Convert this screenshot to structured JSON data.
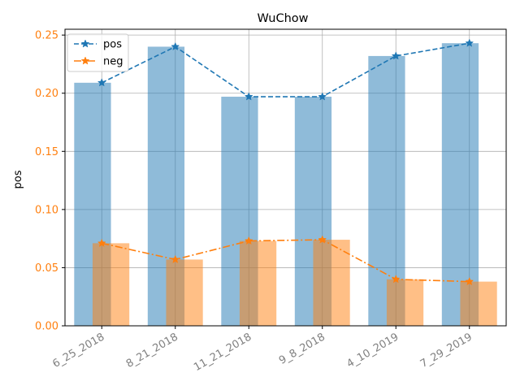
{
  "chart_data": {
    "type": "bar",
    "title": "WuChow",
    "ylabel": "pos",
    "xlabel": "",
    "categories": [
      "6_25_2018",
      "8_21_2018",
      "11_21_2018",
      "9_8_2018",
      "4_10_2019",
      "7_29_2019"
    ],
    "series": [
      {
        "name": "pos",
        "values": [
          0.209,
          0.24,
          0.197,
          0.197,
          0.232,
          0.243
        ],
        "color": "#1f77b4",
        "bar_color": "#8ebad9",
        "line_style": "dashed",
        "marker": "star"
      },
      {
        "name": "neg",
        "values": [
          0.071,
          0.057,
          0.073,
          0.074,
          0.04,
          0.038
        ],
        "color": "#ff7f0e",
        "bar_color": "#ffbf86",
        "line_style": "dashdot",
        "marker": "star"
      }
    ],
    "ylim": [
      0,
      0.255
    ],
    "yticks": [
      "0.00",
      "0.05",
      "0.10",
      "0.15",
      "0.20",
      "0.25"
    ],
    "ytick_color": "#ff7f0e",
    "xtick_color": "#808080",
    "grid": true,
    "legend_position": "top-left"
  }
}
